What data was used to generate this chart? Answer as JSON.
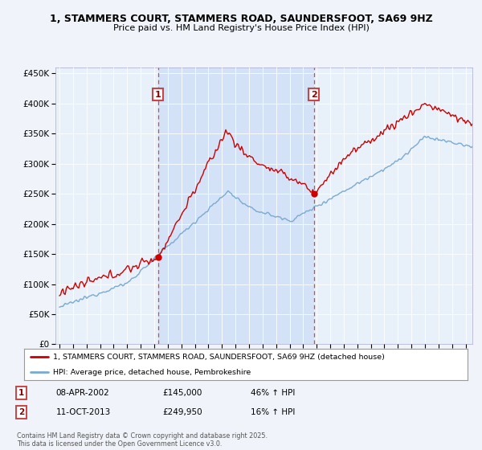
{
  "title_line1": "1, STAMMERS COURT, STAMMERS ROAD, SAUNDERSFOOT, SA69 9HZ",
  "title_line2": "Price paid vs. HM Land Registry's House Price Index (HPI)",
  "background_color": "#f0f4fa",
  "plot_bg_color": "#e8f0fa",
  "shade_color": "#c8daf5",
  "sale1_date": "08-APR-2002",
  "sale1_price": 145000,
  "sale1_label": "46% ↑ HPI",
  "sale2_date": "11-OCT-2013",
  "sale2_price": 249950,
  "sale2_label": "16% ↑ HPI",
  "sale1_x": 2002.27,
  "sale2_x": 2013.78,
  "red_line_color": "#cc0000",
  "blue_line_color": "#7aaad0",
  "dashed_line_color": "#dd4444",
  "legend_label1": "1, STAMMERS COURT, STAMMERS ROAD, SAUNDERSFOOT, SA69 9HZ (detached house)",
  "legend_label2": "HPI: Average price, detached house, Pembrokeshire",
  "footer": "Contains HM Land Registry data © Crown copyright and database right 2025.\nThis data is licensed under the Open Government Licence v3.0.",
  "ylim": [
    0,
    460000
  ],
  "xlim_start": 1994.7,
  "xlim_end": 2025.5
}
